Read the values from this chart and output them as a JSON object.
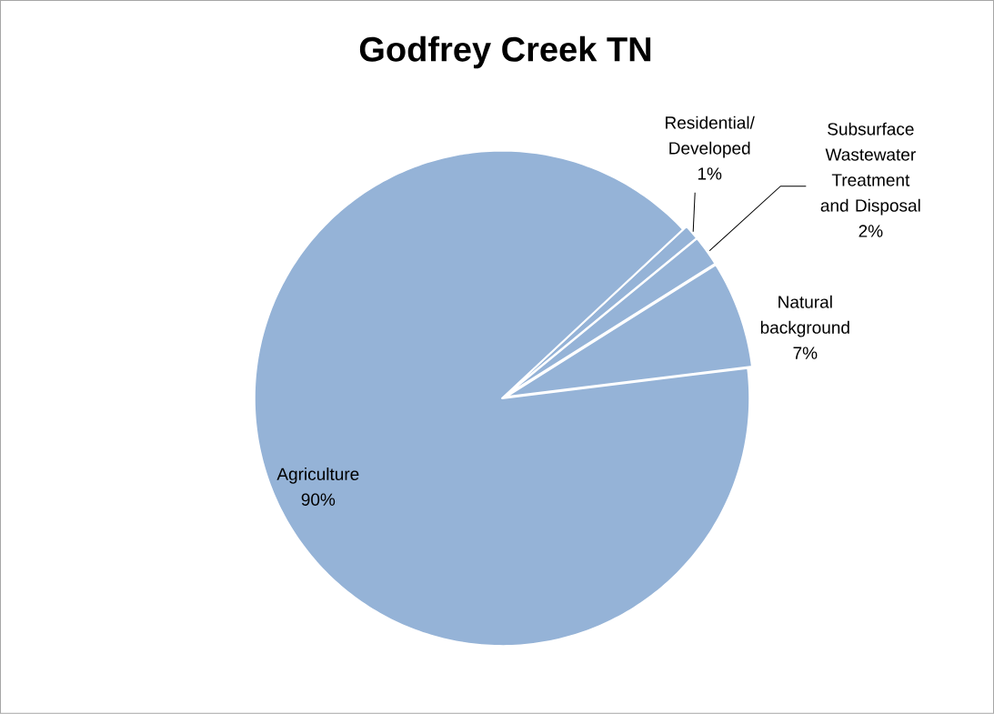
{
  "chart_data": {
    "type": "pie",
    "title": "Godfrey Creek TN",
    "categories": [
      "Residential/ Developed",
      "Subsurface Wastewater Treatment and Disposal",
      "Natural background",
      "Agriculture"
    ],
    "values": [
      1,
      2,
      7,
      90
    ],
    "value_labels": [
      "1%",
      "2%",
      "7%",
      "90%"
    ],
    "colors": [
      "#95b3d7",
      "#95b3d7",
      "#95b3d7",
      "#95b3d7"
    ]
  }
}
